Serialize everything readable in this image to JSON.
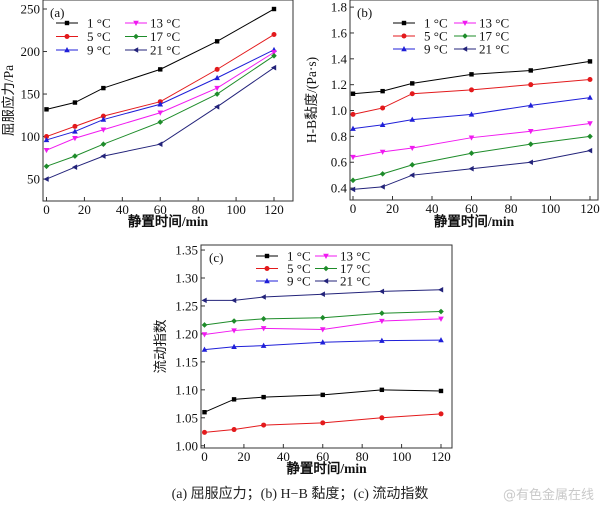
{
  "chart_data": [
    {
      "type": "line",
      "panel": "(a)",
      "title": "",
      "xlabel": "静置时间/min",
      "ylabel": "屈服应力/Pa",
      "x": [
        0,
        15,
        30,
        60,
        90,
        120
      ],
      "xlim": [
        -2,
        130
      ],
      "ylim": [
        24,
        260
      ],
      "xticks": [
        0,
        20,
        40,
        60,
        80,
        100,
        120
      ],
      "xtick_labels": [
        "0",
        "20",
        "40",
        "60",
        "80",
        "100",
        "120"
      ],
      "yticks": [
        50,
        100,
        150,
        200,
        250
      ],
      "ytick_labels": [
        "50",
        "100",
        "150",
        "200",
        "250"
      ],
      "grid": false,
      "legend_position": "top-left",
      "series": [
        {
          "name": "1 °C",
          "color": "#000000",
          "marker": "square",
          "values": [
            132,
            140,
            157,
            179,
            212,
            250
          ]
        },
        {
          "name": "5 °C",
          "color": "#e31a1c",
          "marker": "circle",
          "values": [
            100,
            112,
            124,
            141,
            179,
            220
          ]
        },
        {
          "name": "9 °C",
          "color": "#1f1fd8",
          "marker": "triangle-up",
          "values": [
            96,
            106,
            120,
            138,
            169,
            202
          ]
        },
        {
          "name": "13 °C",
          "color": "#f01af0",
          "marker": "triangle-down",
          "values": [
            84,
            98,
            108,
            128,
            157,
            199
          ]
        },
        {
          "name": "17 °C",
          "color": "#1e8c2a",
          "marker": "diamond",
          "values": [
            65,
            77,
            91,
            117,
            150,
            195
          ]
        },
        {
          "name": "21 °C",
          "color": "#23237a",
          "marker": "triangle-left",
          "values": [
            50,
            64,
            77,
            91,
            135,
            181
          ]
        }
      ]
    },
    {
      "type": "line",
      "panel": "(b)",
      "title": "",
      "xlabel": "静置时间/min",
      "ylabel": "H-B黏度/(Pa·s)",
      "x": [
        0,
        15,
        30,
        60,
        90,
        120
      ],
      "xlim": [
        -2,
        125
      ],
      "ylim": [
        0.32,
        1.86
      ],
      "xticks": [
        0,
        20,
        40,
        60,
        80,
        100,
        120
      ],
      "xtick_labels": [
        "0",
        "20",
        "40",
        "60",
        "80",
        "100",
        "120"
      ],
      "yticks": [
        0.4,
        0.6,
        0.8,
        1.0,
        1.2,
        1.4,
        1.6,
        1.8
      ],
      "ytick_labels": [
        "0.4",
        "0.6",
        "0.8",
        "1.0",
        "1.2",
        "1.4",
        "1.6",
        "1.8"
      ],
      "grid": false,
      "legend_position": "top-center",
      "series": [
        {
          "name": "1 °C",
          "color": "#000000",
          "marker": "square",
          "values": [
            1.13,
            1.15,
            1.21,
            1.28,
            1.31,
            1.38
          ]
        },
        {
          "name": "5 °C",
          "color": "#e31a1c",
          "marker": "circle",
          "values": [
            0.97,
            1.02,
            1.13,
            1.16,
            1.2,
            1.24
          ]
        },
        {
          "name": "9 °C",
          "color": "#1f1fd8",
          "marker": "triangle-up",
          "values": [
            0.86,
            0.89,
            0.93,
            0.97,
            1.04,
            1.1
          ]
        },
        {
          "name": "13 °C",
          "color": "#f01af0",
          "marker": "triangle-down",
          "values": [
            0.64,
            0.68,
            0.71,
            0.79,
            0.84,
            0.9
          ]
        },
        {
          "name": "17 °C",
          "color": "#1e8c2a",
          "marker": "diamond",
          "values": [
            0.46,
            0.51,
            0.58,
            0.67,
            0.74,
            0.8
          ]
        },
        {
          "name": "21 °C",
          "color": "#23237a",
          "marker": "triangle-left",
          "values": [
            0.39,
            0.41,
            0.5,
            0.55,
            0.6,
            0.69
          ]
        }
      ]
    },
    {
      "type": "line",
      "panel": "(c)",
      "title": "",
      "xlabel": "静置时间/min",
      "ylabel": "流动指数",
      "x": [
        0,
        15,
        30,
        60,
        90,
        120
      ],
      "xlim": [
        -2,
        125
      ],
      "ylim": [
        0.997,
        1.36
      ],
      "xticks": [
        0,
        20,
        40,
        60,
        80,
        100,
        120
      ],
      "xtick_labels": [
        "0",
        "20",
        "40",
        "60",
        "80",
        "100",
        "120"
      ],
      "yticks": [
        1.0,
        1.05,
        1.1,
        1.15,
        1.2,
        1.25,
        1.3,
        1.35
      ],
      "ytick_labels": [
        "1.00",
        "1.05",
        "1.10",
        "1.15",
        "1.20",
        "1.25",
        "1.30",
        "1.35"
      ],
      "grid": false,
      "legend_position": "top-center",
      "series": [
        {
          "name": "1 °C",
          "color": "#000000",
          "marker": "square",
          "values": [
            1.06,
            1.083,
            1.087,
            1.091,
            1.1,
            1.098
          ]
        },
        {
          "name": "5 °C",
          "color": "#e31a1c",
          "marker": "circle",
          "values": [
            1.024,
            1.029,
            1.037,
            1.041,
            1.05,
            1.057
          ]
        },
        {
          "name": "9 °C",
          "color": "#1f1fd8",
          "marker": "triangle-up",
          "values": [
            1.172,
            1.177,
            1.179,
            1.185,
            1.188,
            1.189
          ]
        },
        {
          "name": "13 °C",
          "color": "#f01af0",
          "marker": "triangle-down",
          "values": [
            1.199,
            1.206,
            1.21,
            1.208,
            1.223,
            1.227
          ]
        },
        {
          "name": "17 °C",
          "color": "#1e8c2a",
          "marker": "diamond",
          "values": [
            1.216,
            1.223,
            1.227,
            1.229,
            1.237,
            1.24
          ]
        },
        {
          "name": "21 °C",
          "color": "#23237a",
          "marker": "triangle-left",
          "values": [
            1.26,
            1.26,
            1.266,
            1.271,
            1.276,
            1.279
          ]
        }
      ]
    }
  ],
  "caption": "(a) 屈服应力；(b) H−B 黏度；(c) 流动指数",
  "watermark": "@有色金属在线"
}
